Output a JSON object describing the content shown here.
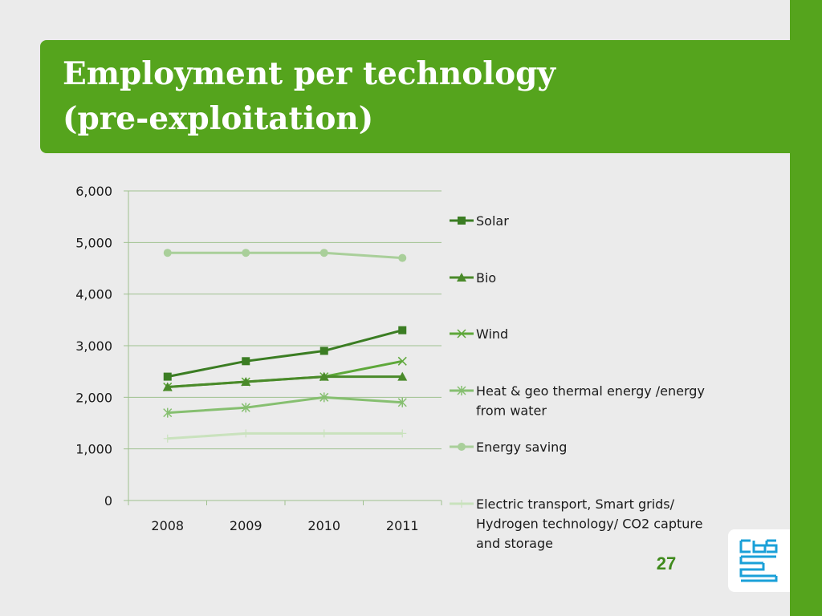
{
  "slide": {
    "title_line1": "Employment per technology",
    "title_line2": "(pre-exploitation)",
    "page_number": "27"
  },
  "colors": {
    "brand_green": "#55a41d",
    "background": "#ebebeb",
    "page_number": "#3f8a1c"
  },
  "chart_data": {
    "type": "line",
    "title": "",
    "xlabel": "",
    "ylabel": "",
    "categories": [
      "2008",
      "2009",
      "2010",
      "2011"
    ],
    "ylim": [
      0,
      6000
    ],
    "yticks": [
      0,
      1000,
      2000,
      3000,
      4000,
      5000,
      6000
    ],
    "ytick_labels": [
      "0",
      "1,000",
      "2,000",
      "3,000",
      "4,000",
      "5,000",
      "6,000"
    ],
    "grid": true,
    "legend_position": "right",
    "series": [
      {
        "name": "Solar",
        "values": [
          2400,
          2700,
          2900,
          3300
        ],
        "color": "#3b7d23",
        "marker": "square"
      },
      {
        "name": "Bio",
        "values": [
          2200,
          2300,
          2400,
          2400
        ],
        "color": "#4a8a2a",
        "marker": "triangle"
      },
      {
        "name": "Wind",
        "values": [
          2200,
          2300,
          2400,
          2700
        ],
        "color": "#5ea83a",
        "marker": "x"
      },
      {
        "name": "Heat & geo thermal energy /energy from water",
        "legend_lines": [
          "Heat & geo thermal energy /energy",
          "from water"
        ],
        "values": [
          1700,
          1800,
          2000,
          1900
        ],
        "color": "#86bf70",
        "marker": "star"
      },
      {
        "name": "Energy saving",
        "values": [
          4800,
          4800,
          4800,
          4700
        ],
        "color": "#a9cf9a",
        "marker": "circle"
      },
      {
        "name": "Electric transport, Smart grids/ Hydrogen technology/ CO2 capture and storage",
        "legend_lines": [
          "Electric transport, Smart grids/",
          "Hydrogen technology/ CO2 capture",
          "and storage"
        ],
        "values": [
          1200,
          1300,
          1300,
          1300
        ],
        "color": "#c9e2bd",
        "marker": "plus"
      }
    ]
  }
}
